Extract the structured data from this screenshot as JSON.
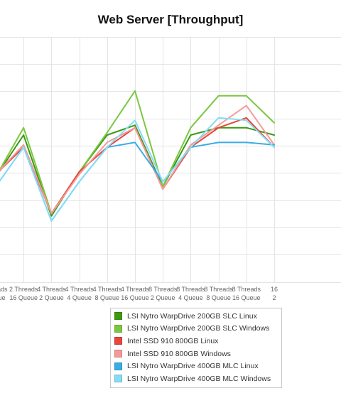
{
  "chart_data": {
    "type": "line",
    "title": "Web Server [Throughput]",
    "categories": [
      [
        "Threads",
        "Queue"
      ],
      [
        "2 Threads",
        "16 Queue"
      ],
      [
        "4 Threads",
        "2 Queue"
      ],
      [
        "4 Threads",
        "4 Queue"
      ],
      [
        "4 Threads",
        "8 Queue"
      ],
      [
        "4 Threads",
        "16 Queue"
      ],
      [
        "8 Threads",
        "2 Queue"
      ],
      [
        "8 Threads",
        "4 Queue"
      ],
      [
        "8 Threads",
        "8 Queue"
      ],
      [
        "8 Threads",
        "16 Queue"
      ],
      [
        "16",
        "2"
      ]
    ],
    "ylim": [
      0,
      100
    ],
    "grid": true,
    "legend_position": "bottom",
    "series": [
      {
        "name": "LSI Nytro WarpDrive 200GB SLC Linux",
        "color": "#3a9a12",
        "values": [
          43,
          60,
          27,
          45,
          60,
          64,
          39,
          60,
          63,
          63,
          60
        ]
      },
      {
        "name": "LSI Nytro WarpDrive 200GB SLC Windows",
        "color": "#7cc740",
        "values": [
          43,
          63,
          28,
          45,
          61,
          78,
          39,
          63,
          76,
          76,
          65
        ]
      },
      {
        "name": "Intel SSD 910 800GB Linux",
        "color": "#e8453c",
        "values": [
          44,
          55,
          28,
          45,
          55,
          63,
          38,
          55,
          63,
          67,
          55
        ]
      },
      {
        "name": "Intel SSD 910 800GB Windows",
        "color": "#f59a9a",
        "values": [
          44,
          56,
          28,
          44,
          57,
          63,
          38,
          56,
          64,
          72,
          56
        ]
      },
      {
        "name": "LSI Nytro WarpDrive 400GB MLC Linux",
        "color": "#3aace6",
        "values": [
          39,
          55,
          25,
          41,
          55,
          57,
          41,
          55,
          57,
          57,
          56
        ]
      },
      {
        "name": "LSI Nytro WarpDrive 400GB MLC Windows",
        "color": "#86dcf5",
        "values": [
          39,
          55,
          25,
          41,
          55,
          66,
          41,
          55,
          67,
          66,
          55
        ]
      }
    ]
  }
}
